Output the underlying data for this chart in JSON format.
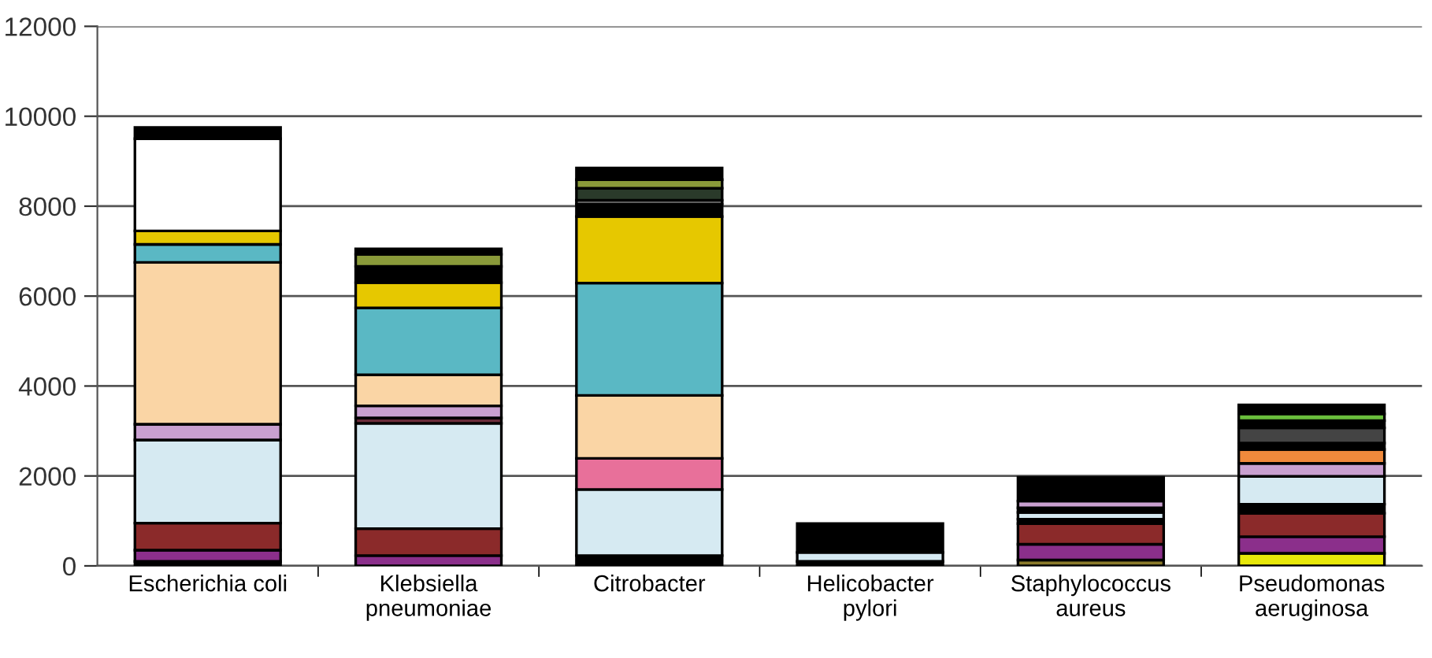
{
  "chart_data": {
    "type": "bar",
    "stacked": true,
    "categories": [
      "Escherichia coli",
      "Klebsiella\npneumoniae",
      "Citrobacter",
      "Helicobacter\npylori",
      "Staphylococcus\naureus",
      "Pseudomonas\naeruginosa"
    ],
    "series": [
      {
        "color": "#000000",
        "values": [
          100,
          null,
          230,
          100,
          null,
          null
        ]
      },
      {
        "color": "#8a7a2a",
        "values": [
          null,
          null,
          null,
          null,
          130,
          null
        ]
      },
      {
        "color": "#e8e80a",
        "values": [
          null,
          null,
          null,
          null,
          null,
          280
        ]
      },
      {
        "color": "#8b2f8b",
        "values": [
          250,
          230,
          null,
          null,
          350,
          370
        ]
      },
      {
        "color": "#8b2a2a",
        "values": [
          600,
          600,
          null,
          null,
          460,
          520
        ]
      },
      {
        "color": "#000000",
        "values": [
          null,
          null,
          null,
          null,
          100,
          200
        ]
      },
      {
        "color": "#d6eaf2",
        "values": [
          1850,
          2340,
          1470,
          200,
          150,
          620
        ]
      },
      {
        "color": "#6b2c3a",
        "values": [
          null,
          120,
          null,
          null,
          null,
          null
        ]
      },
      {
        "color": "#000000",
        "values": [
          null,
          null,
          null,
          null,
          100,
          null
        ]
      },
      {
        "color": "#c9a0d0",
        "values": [
          350,
          270,
          null,
          null,
          150,
          290
        ]
      },
      {
        "color": "#e8709a",
        "values": [
          null,
          null,
          690,
          null,
          null,
          null
        ]
      },
      {
        "color": "#fad5a5",
        "values": [
          3600,
          690,
          1400,
          null,
          null,
          null
        ]
      },
      {
        "color": "#f08a3c",
        "values": [
          null,
          null,
          null,
          null,
          null,
          310
        ]
      },
      {
        "color": "#000000",
        "values": [
          null,
          null,
          null,
          null,
          null,
          140
        ]
      },
      {
        "color": "#444444",
        "values": [
          null,
          null,
          null,
          null,
          null,
          340
        ]
      },
      {
        "color": "#000000",
        "values": [
          null,
          null,
          null,
          null,
          null,
          160
        ]
      },
      {
        "color": "#6abf3c",
        "values": [
          null,
          null,
          null,
          null,
          null,
          150
        ]
      },
      {
        "color": "#5ab8c4",
        "values": [
          400,
          1490,
          2500,
          null,
          null,
          null
        ]
      },
      {
        "color": "#e6c800",
        "values": [
          300,
          560,
          1480,
          null,
          null,
          null
        ]
      },
      {
        "color": "#000000",
        "values": [
          null,
          360,
          280,
          null,
          null,
          null
        ]
      },
      {
        "color": "#b0b0b0",
        "values": [
          null,
          null,
          80,
          null,
          null,
          null
        ]
      },
      {
        "color": "#2a3a2a",
        "values": [
          null,
          null,
          270,
          null,
          null,
          null
        ]
      },
      {
        "color": "#8a9a3a",
        "values": [
          null,
          270,
          190,
          null,
          null,
          null
        ]
      },
      {
        "color": "#ffffff",
        "values": [
          2050,
          null,
          null,
          null,
          null,
          null
        ]
      },
      {
        "color": "#000000",
        "values": [
          250,
          120,
          260,
          640,
          530,
          200
        ]
      }
    ],
    "ylim": [
      0,
      12000
    ],
    "yticks": [
      0,
      2000,
      4000,
      6000,
      8000,
      10000,
      12000
    ],
    "grid": "y"
  }
}
